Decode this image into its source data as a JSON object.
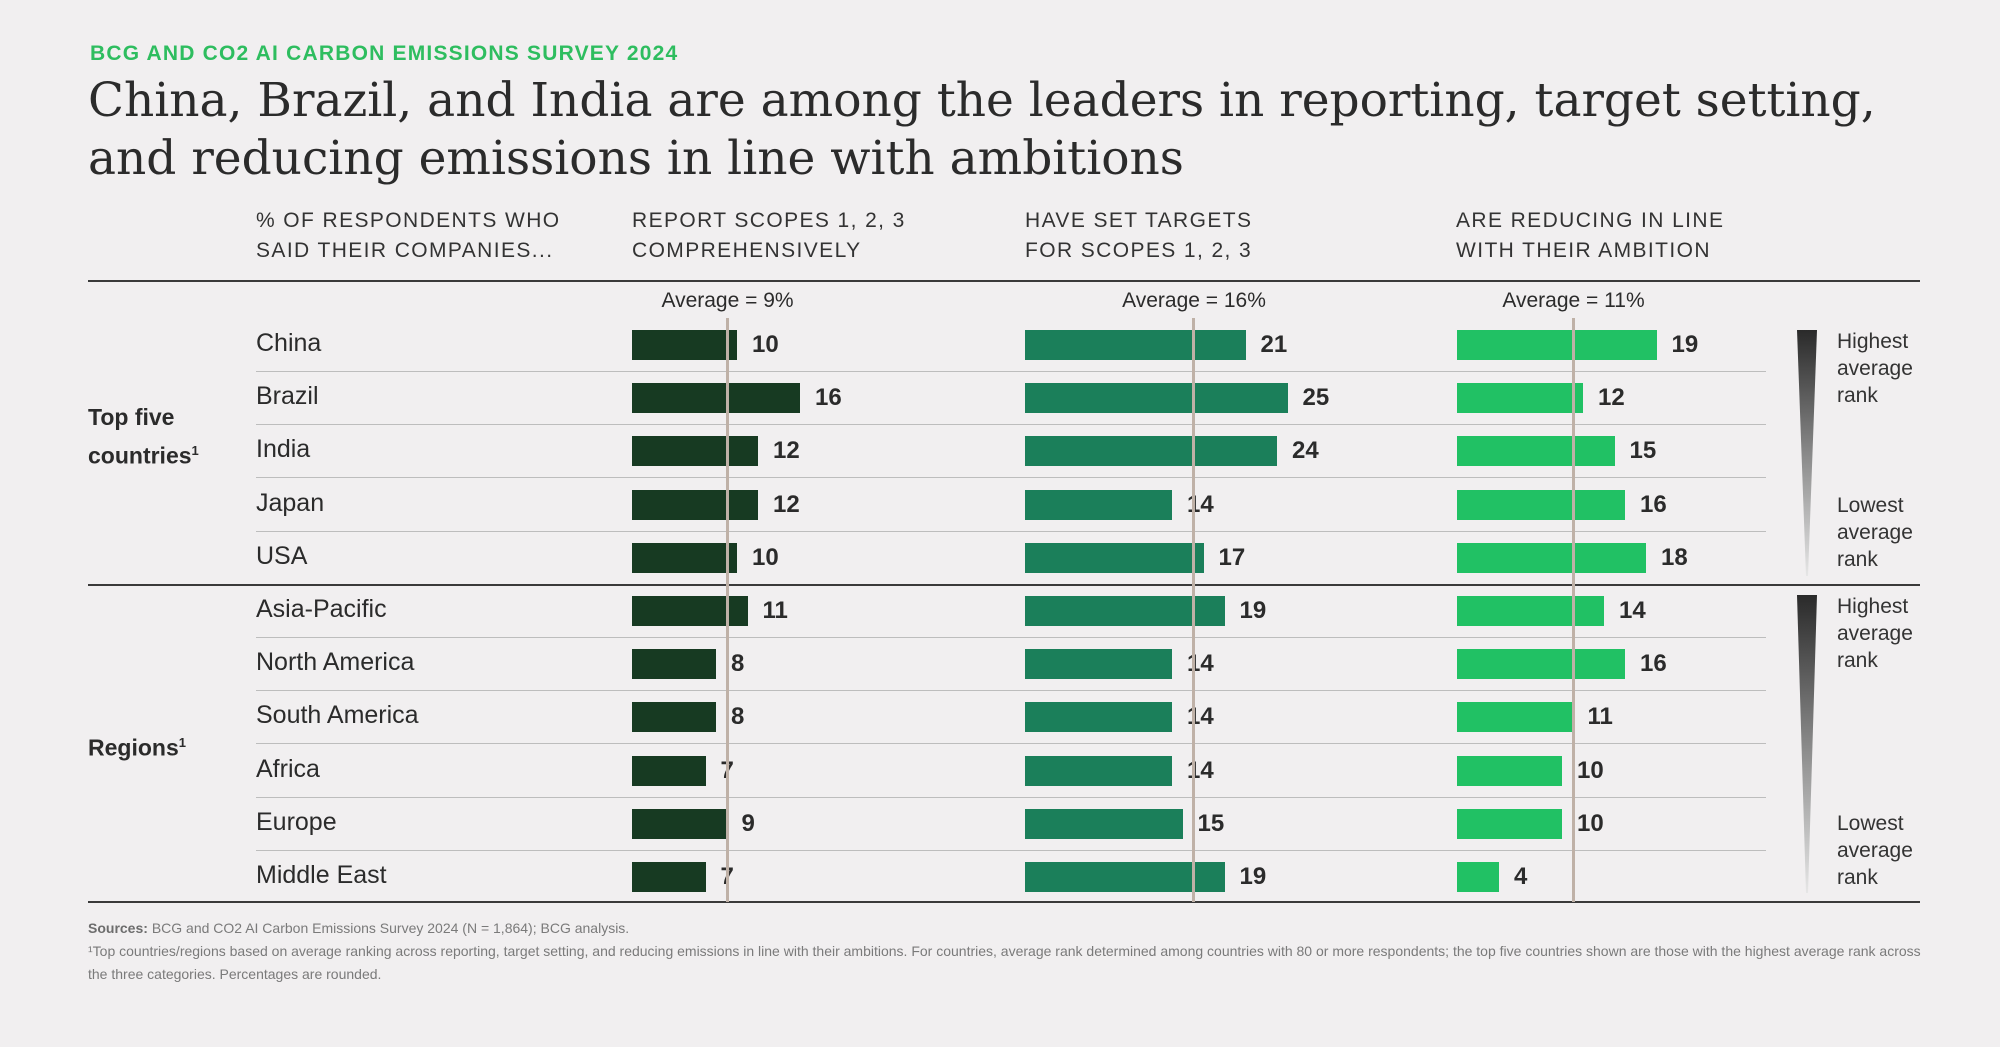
{
  "eyebrow": "BCG AND CO2 AI CARBON EMISSIONS SURVEY 2024",
  "title": "China, Brazil, and India are among the leaders in reporting, target setting, and reducing emissions in line with ambitions",
  "row_header": [
    "% OF RESPONDENTS WHO",
    "SAID THEIR COMPANIES..."
  ],
  "columns": [
    {
      "head": [
        "REPORT SCOPES 1, 2, 3",
        "COMPREHENSIVELY"
      ],
      "average_label": "Average = 9%",
      "average": 9,
      "color": "#173a22"
    },
    {
      "head": [
        "HAVE SET TARGETS",
        "FOR SCOPES 1, 2, 3"
      ],
      "average_label": "Average = 16%",
      "average": 16,
      "color": "#1b7f5a"
    },
    {
      "head": [
        "ARE REDUCING IN LINE",
        "WITH THEIR AMBITION"
      ],
      "average_label": "Average = 11%",
      "average": 11,
      "color": "#21c164"
    }
  ],
  "groups": [
    {
      "label": "Top five",
      "label2": "countries",
      "footnote": "1"
    },
    {
      "label": "Regions",
      "footnote": "1"
    }
  ],
  "rank_legend": {
    "high": [
      "Highest",
      "average",
      "rank"
    ],
    "low": [
      "Lowest",
      "average",
      "rank"
    ]
  },
  "sources_label": "Sources:",
  "sources_text": "BCG and CO2 AI Carbon Emissions Survey 2024 (N = 1,864); BCG analysis.",
  "footnote": "¹Top countries/regions based on average ranking across reporting, target setting, and reducing emissions in line with their ambitions. For countries, average rank determined among countries with 80 or more respondents; the top five countries shown are those with the highest average rank across the three categories. Percentages are rounded.",
  "chart_data": {
    "type": "bar",
    "categories": [
      "China",
      "Brazil",
      "India",
      "Japan",
      "USA",
      "Asia-Pacific",
      "North America",
      "South America",
      "Africa",
      "Europe",
      "Middle East"
    ],
    "series": [
      {
        "name": "REPORT SCOPES 1, 2, 3 COMPREHENSIVELY",
        "values": [
          10,
          16,
          12,
          12,
          10,
          11,
          8,
          8,
          7,
          9,
          7
        ]
      },
      {
        "name": "HAVE SET TARGETS FOR SCOPES 1, 2, 3",
        "values": [
          21,
          25,
          24,
          14,
          17,
          19,
          14,
          14,
          14,
          15,
          19
        ]
      },
      {
        "name": "ARE REDUCING IN LINE WITH THEIR AMBITION",
        "values": [
          19,
          12,
          15,
          16,
          18,
          14,
          16,
          11,
          10,
          10,
          4
        ]
      }
    ],
    "averages": [
      9,
      16,
      11
    ]
  }
}
